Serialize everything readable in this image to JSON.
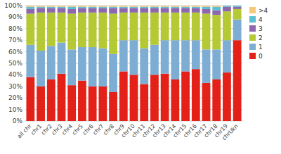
{
  "chart_data": {
    "type": "bar",
    "stacked": true,
    "categories": [
      "all chr",
      "chr1",
      "chr2",
      "chr3",
      "chr4",
      "chr5",
      "chr6",
      "chr7",
      "chr8",
      "chr9",
      "chr10",
      "chr11",
      "chr12",
      "chr13",
      "chr14",
      "chr15",
      "chr16",
      "chr17",
      "chr18",
      "chr19",
      "chrUkn"
    ],
    "series": [
      {
        "name": "0",
        "color": "#e32118",
        "values": [
          38,
          30,
          36,
          41,
          31,
          35,
          30,
          30,
          25,
          43,
          40,
          32,
          40,
          41,
          36,
          43,
          45,
          33,
          36,
          42,
          70
        ]
      },
      {
        "name": "1",
        "color": "#7eadd4",
        "values": [
          28,
          31,
          29,
          27,
          31,
          29,
          34,
          33,
          33,
          27,
          30,
          31,
          26,
          29,
          34,
          27,
          25,
          29,
          26,
          28,
          18
        ]
      },
      {
        "name": "2",
        "color": "#b5c934",
        "values": [
          27,
          33,
          29,
          26,
          31,
          30,
          30,
          31,
          35,
          24,
          24,
          31,
          28,
          24,
          24,
          24,
          24,
          31,
          30,
          25,
          9
        ]
      },
      {
        "name": "3",
        "color": "#8e68ac",
        "values": [
          4,
          4,
          4,
          4,
          4,
          4,
          4,
          4,
          5,
          4,
          4,
          4,
          4,
          4,
          4,
          4,
          4,
          4,
          4,
          4,
          2
        ]
      },
      {
        "name": "4",
        "color": "#5bbfd6",
        "values": [
          2,
          1,
          1,
          1,
          2,
          1,
          1,
          1,
          1,
          1,
          1,
          1,
          1,
          1,
          1,
          1,
          1,
          2,
          3,
          1,
          1
        ]
      },
      {
        "name": ">4",
        "color": "#f5c87a",
        "values": [
          1,
          1,
          1,
          1,
          1,
          1,
          1,
          1,
          1,
          1,
          1,
          1,
          1,
          1,
          1,
          1,
          1,
          1,
          1,
          0,
          0
        ]
      }
    ],
    "ylim": [
      0,
      100
    ],
    "yticks": [
      {
        "value": 0,
        "label": "0%"
      },
      {
        "value": 10,
        "label": "10%"
      },
      {
        "value": 20,
        "label": "20%"
      },
      {
        "value": 30,
        "label": "30%"
      },
      {
        "value": 40,
        "label": "40%"
      },
      {
        "value": 50,
        "label": "50%"
      },
      {
        "value": 60,
        "label": "60%"
      },
      {
        "value": 70,
        "label": "70%"
      },
      {
        "value": 80,
        "label": "80%"
      },
      {
        "value": 90,
        "label": "90%"
      },
      {
        "value": 100,
        "label": "100%"
      }
    ],
    "grid": true,
    "legend": "right"
  }
}
